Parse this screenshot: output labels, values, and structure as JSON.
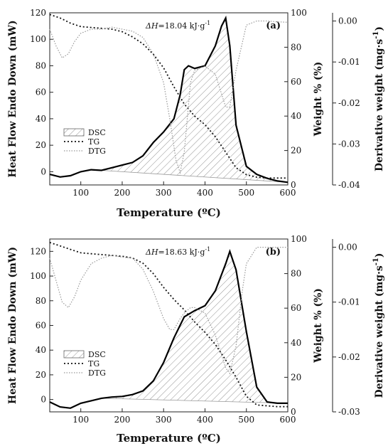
{
  "chart_data": [
    {
      "type": "line",
      "panel_label": "(a)",
      "annotation": {
        "prefix": "ΔH",
        "rest": "=18.04 kJ·g",
        "sup": "-1"
      },
      "xlabel": "Temperature (ºC)",
      "ylabel_left": "Heat Flow Endo Down (mW)",
      "ylabel_right1": "Weight % (%)",
      "ylabel_right2_base": "Derivative weight (mg·s",
      "ylabel_right2_sup": "-1",
      "ylabel_right2_tail": ")",
      "xlim": [
        25,
        600
      ],
      "xticks": [
        100,
        200,
        300,
        400,
        500,
        600
      ],
      "ylim_left": [
        -10,
        120
      ],
      "yticks_left": [
        0,
        20,
        40,
        60,
        80,
        100,
        120
      ],
      "ylim_weight": [
        0,
        100
      ],
      "yticks_weight": [
        0,
        20,
        40,
        60,
        80,
        100
      ],
      "ylim_deriv": [
        -0.04,
        0.002
      ],
      "yticks_deriv": [
        0.0,
        -0.01,
        -0.02,
        -0.03,
        -0.04
      ],
      "yticks_deriv_labels": [
        "0.00",
        "-0.01",
        "-0.02",
        "-0.03",
        "-0.04"
      ],
      "legend": {
        "position": "middle-left",
        "entries": [
          "DSC",
          "TG",
          "DTG"
        ]
      },
      "series": [
        {
          "name": "DSC",
          "axis": "left",
          "style": "solid",
          "x": [
            25,
            50,
            75,
            100,
            125,
            150,
            175,
            200,
            225,
            250,
            275,
            300,
            325,
            340,
            350,
            360,
            375,
            400,
            425,
            440,
            450,
            460,
            475,
            500,
            525,
            550,
            575,
            600
          ],
          "y": [
            -2,
            -4,
            -3,
            0,
            1.5,
            1,
            3,
            5,
            7,
            12,
            22,
            30,
            40,
            58,
            77,
            80,
            78,
            80,
            95,
            110,
            116,
            95,
            35,
            4,
            -2,
            -5,
            -7,
            -8
          ]
        },
        {
          "name": "TG",
          "axis": "weight",
          "style": "dotted",
          "x": [
            25,
            50,
            75,
            100,
            125,
            150,
            175,
            200,
            225,
            250,
            275,
            300,
            325,
            350,
            375,
            400,
            425,
            450,
            475,
            500,
            525,
            550,
            575,
            600
          ],
          "y": [
            99,
            97,
            94,
            92,
            91.5,
            91,
            90.5,
            89,
            86,
            82,
            76,
            68,
            57,
            47,
            40,
            35,
            28,
            19,
            10,
            6,
            4.5,
            4,
            4,
            4
          ]
        },
        {
          "name": "DTG",
          "axis": "deriv",
          "style": "dotted",
          "x": [
            25,
            40,
            55,
            70,
            85,
            100,
            125,
            150,
            175,
            200,
            225,
            250,
            275,
            300,
            315,
            330,
            340,
            350,
            365,
            375,
            400,
            425,
            450,
            460,
            475,
            500,
            525,
            550,
            575,
            600
          ],
          "y": [
            -0.002,
            -0.006,
            -0.009,
            -0.008,
            -0.005,
            -0.003,
            -0.002,
            -0.002,
            -0.0015,
            -0.002,
            -0.0025,
            -0.004,
            -0.008,
            -0.015,
            -0.024,
            -0.034,
            -0.037,
            -0.032,
            -0.015,
            -0.012,
            -0.011,
            -0.013,
            -0.021,
            -0.021,
            -0.012,
            -0.001,
            0.0,
            0.0,
            -0.0002,
            -0.0003
          ]
        }
      ]
    },
    {
      "type": "line",
      "panel_label": "(b)",
      "annotation": {
        "prefix": "ΔH",
        "rest": "=18.63 kJ·g",
        "sup": "-1"
      },
      "xlabel": "Temperature (ºC)",
      "ylabel_left": "Heat Flow Endo Down (mW)",
      "ylabel_right1": "Weight % (%)",
      "ylabel_right2_base": "Derivative weight (mg·s",
      "ylabel_right2_sup": "-1",
      "ylabel_right2_tail": ")",
      "xlim": [
        25,
        600
      ],
      "xticks": [
        100,
        200,
        300,
        400,
        500,
        600
      ],
      "ylim_left": [
        -10,
        130
      ],
      "yticks_left": [
        0,
        20,
        40,
        60,
        80,
        100,
        120
      ],
      "ylim_weight": [
        0,
        100
      ],
      "yticks_weight": [
        0,
        20,
        40,
        60,
        80,
        100
      ],
      "ylim_deriv": [
        -0.03,
        0.0015
      ],
      "yticks_deriv": [
        0.0,
        -0.01,
        -0.02,
        -0.03
      ],
      "yticks_deriv_labels": [
        "0.00",
        "-0.01",
        "-0.02",
        "-0.03"
      ],
      "legend": {
        "position": "lower-left",
        "entries": [
          "DSC",
          "TG",
          "DTG"
        ]
      },
      "series": [
        {
          "name": "DSC",
          "axis": "left",
          "style": "solid",
          "x": [
            25,
            50,
            75,
            100,
            125,
            150,
            175,
            200,
            225,
            250,
            275,
            300,
            325,
            350,
            375,
            400,
            425,
            450,
            460,
            475,
            500,
            525,
            550,
            575,
            600
          ],
          "y": [
            -2,
            -6,
            -7,
            -3,
            -1,
            1,
            2,
            2.5,
            4,
            7,
            15,
            30,
            50,
            67,
            72,
            76,
            88,
            110,
            120,
            105,
            55,
            10,
            -2,
            -3,
            -3
          ]
        },
        {
          "name": "TG",
          "axis": "weight",
          "style": "dotted",
          "x": [
            25,
            50,
            75,
            100,
            125,
            150,
            175,
            200,
            225,
            250,
            275,
            300,
            325,
            350,
            375,
            400,
            425,
            450,
            475,
            500,
            525,
            550,
            575,
            600
          ],
          "y": [
            98,
            96,
            94,
            92,
            91.5,
            91,
            90.5,
            90,
            89,
            86,
            80,
            72,
            65,
            59,
            52,
            46,
            39,
            30,
            20,
            9,
            4,
            3.5,
            3,
            3
          ]
        },
        {
          "name": "DTG",
          "axis": "deriv",
          "style": "dotted",
          "x": [
            25,
            40,
            55,
            70,
            85,
            100,
            125,
            150,
            175,
            200,
            225,
            250,
            275,
            300,
            315,
            325,
            340,
            350,
            365,
            375,
            400,
            425,
            450,
            460,
            475,
            490,
            500,
            525,
            550,
            575,
            600
          ],
          "y": [
            -0.002,
            -0.006,
            -0.01,
            -0.011,
            -0.009,
            -0.006,
            -0.003,
            -0.002,
            -0.0015,
            -0.0018,
            -0.002,
            -0.004,
            -0.008,
            -0.013,
            -0.015,
            -0.015,
            -0.013,
            -0.012,
            -0.011,
            -0.011,
            -0.012,
            -0.016,
            -0.022,
            -0.023,
            -0.018,
            -0.008,
            -0.003,
            0.0,
            0.0,
            0.0,
            0.0
          ]
        }
      ]
    }
  ]
}
